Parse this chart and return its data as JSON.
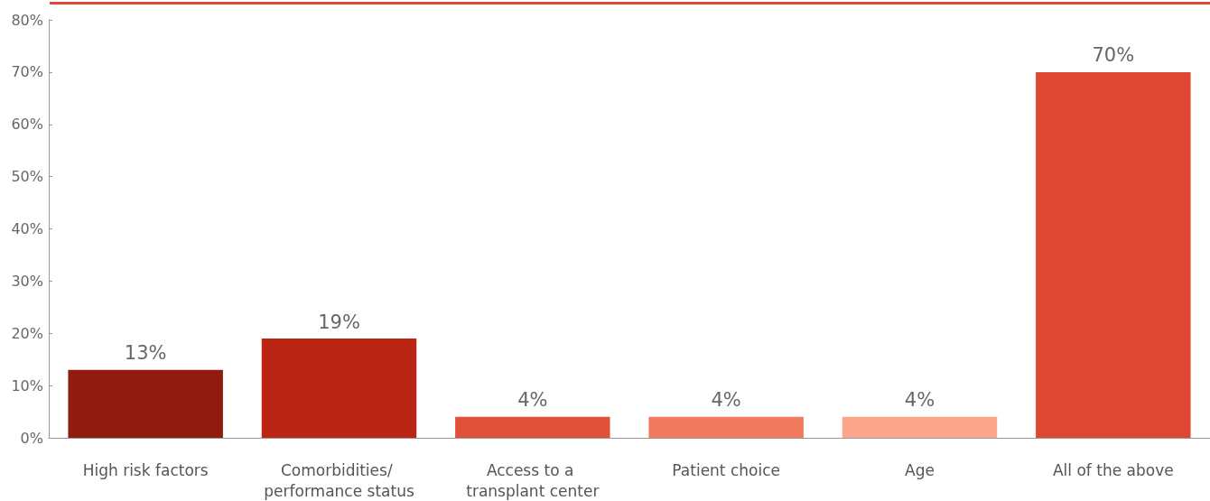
{
  "chart_data": {
    "type": "bar",
    "categories": [
      "High risk factors",
      "Comorbidities/ performance status",
      "Access to a transplant center",
      "Patient choice",
      "Age",
      "All of the above"
    ],
    "values": [
      13,
      19,
      4,
      4,
      4,
      70
    ],
    "colors": [
      "#8f1c0e",
      "#bb2614",
      "#e0513a",
      "#ef7a5d",
      "#fca58a",
      "#de4832"
    ],
    "ylim": [
      0,
      80
    ],
    "yticks": [
      {
        "value": 0,
        "label": "0%"
      },
      {
        "value": 10,
        "label": "10%"
      },
      {
        "value": 20,
        "label": "20%"
      },
      {
        "value": 30,
        "label": "30%"
      },
      {
        "value": 40,
        "label": "40%"
      },
      {
        "value": 50,
        "label": "50%"
      },
      {
        "value": 60,
        "label": "60%"
      },
      {
        "value": 70,
        "label": "70%"
      },
      {
        "value": 80,
        "label": "80%"
      }
    ],
    "value_labels": [
      "13%",
      "19%",
      "4%",
      "4%",
      "4%",
      "70%"
    ],
    "grid": false
  }
}
